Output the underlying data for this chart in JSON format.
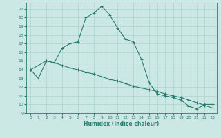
{
  "xlabel": "Humidex (Indice chaleur)",
  "bg_color": "#cce8e4",
  "grid_color": "#aad4d0",
  "line_color": "#2a7a6e",
  "xlim": [
    -0.5,
    23.5
  ],
  "ylim": [
    9,
    21.7
  ],
  "yticks": [
    9,
    10,
    11,
    12,
    13,
    14,
    15,
    16,
    17,
    18,
    19,
    20,
    21
  ],
  "xticks": [
    0,
    1,
    2,
    3,
    4,
    5,
    6,
    7,
    8,
    9,
    10,
    11,
    12,
    13,
    14,
    15,
    16,
    17,
    18,
    19,
    20,
    21,
    22,
    23
  ],
  "line1_x": [
    0,
    1,
    2,
    3,
    4,
    5,
    6,
    7,
    8,
    9,
    10,
    11,
    12,
    13,
    14,
    15,
    16,
    17,
    18,
    19,
    20,
    21,
    22,
    23
  ],
  "line1_y": [
    14,
    13,
    15,
    14.8,
    16.5,
    17,
    17.2,
    20.0,
    20.5,
    21.3,
    20.3,
    18.8,
    17.5,
    17.2,
    15.2,
    12.5,
    11.2,
    11.0,
    10.8,
    10.5,
    9.8,
    9.5,
    10.0,
    10.0
  ],
  "line2_x": [
    0,
    2,
    3,
    4,
    5,
    6,
    7,
    8,
    9,
    10,
    11,
    12,
    13,
    14,
    15,
    16,
    17,
    18,
    19,
    20,
    21,
    22,
    23
  ],
  "line2_y": [
    14,
    15,
    14.8,
    14.5,
    14.2,
    14.0,
    13.7,
    13.5,
    13.2,
    12.9,
    12.7,
    12.4,
    12.1,
    11.9,
    11.7,
    11.5,
    11.2,
    11.0,
    10.8,
    10.5,
    10.2,
    9.9,
    9.6
  ]
}
